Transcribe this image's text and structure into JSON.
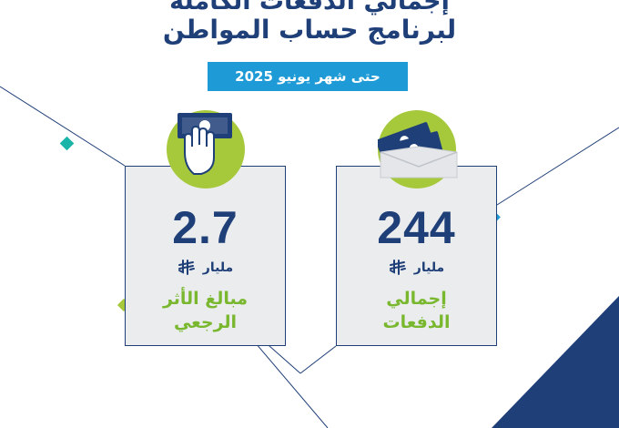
{
  "header": {
    "title_line1": "إجمالي الدفعات الكاملة",
    "title_line2": "لبرنامج حساب المواطن",
    "date_badge": "حتى شهر يونيو 2025"
  },
  "cards": [
    {
      "value": "2.7",
      "unit": "مليار",
      "label_line1": "مبالغ الأثر",
      "label_line2": "الرجعي",
      "icon": "hand-holding-money-icon"
    },
    {
      "value": "244",
      "unit": "مليار",
      "label_line1": "إجمالي",
      "label_line2": "الدفعات",
      "icon": "money-envelope-icon"
    }
  ],
  "colors": {
    "navy": "#1f3f78",
    "blue": "#1e9ad6",
    "green": "#79b82e",
    "lime": "#a6c83b",
    "teal": "#1ab4a8",
    "card_bg": "#eaeced"
  }
}
